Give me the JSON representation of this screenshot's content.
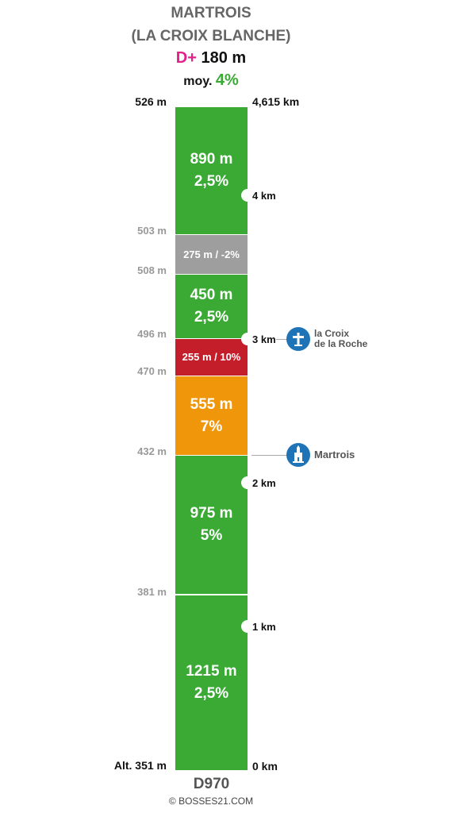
{
  "header": {
    "title_line1": "MARTROIS",
    "title_line2": "(LA CROIX BLANCHE)",
    "dplus_label": "D+",
    "dplus_value": "180 m",
    "avg_label": "moy.",
    "avg_value": "4%"
  },
  "profile": {
    "top_altitude": "526 m",
    "total_distance": "4,615 km",
    "start_altitude": "Alt. 351 m",
    "segments": [
      {
        "line1": "890 m",
        "line2": "2,5%",
        "color": "#3aaa35"
      },
      {
        "line1": "275 m / -2%",
        "line2": "",
        "color": "#9e9e9e"
      },
      {
        "line1": "450 m",
        "line2": "2,5%",
        "color": "#3aaa35"
      },
      {
        "line1": "255 m / 10%",
        "line2": "",
        "color": "#c41e2a"
      },
      {
        "line1": "555 m",
        "line2": "7%",
        "color": "#f0960a"
      },
      {
        "line1": "975 m",
        "line2": "5%",
        "color": "#3aaa35"
      },
      {
        "line1": "1215 m",
        "line2": "2,5%",
        "color": "#3aaa35"
      }
    ],
    "altitudes": [
      "503 m",
      "508 m",
      "496 m",
      "470 m",
      "432 m",
      "381 m"
    ],
    "km_markers": [
      "4 km",
      "3 km",
      "2 km",
      "1 km",
      "0 km"
    ]
  },
  "pois": [
    {
      "label_line1": "la Croix",
      "label_line2": "de la Roche",
      "icon": "cross-icon"
    },
    {
      "label_line1": "Martrois",
      "label_line2": "",
      "icon": "church-icon"
    }
  ],
  "footer": {
    "road": "D970",
    "credit": "© BOSSES21.COM"
  },
  "colors": {
    "climb": "#3aaa35",
    "flat": "#9e9e9e",
    "steep": "#c41e2a",
    "hard": "#f0960a",
    "poi": "#1f73b7",
    "dplus": "#e0218a"
  }
}
